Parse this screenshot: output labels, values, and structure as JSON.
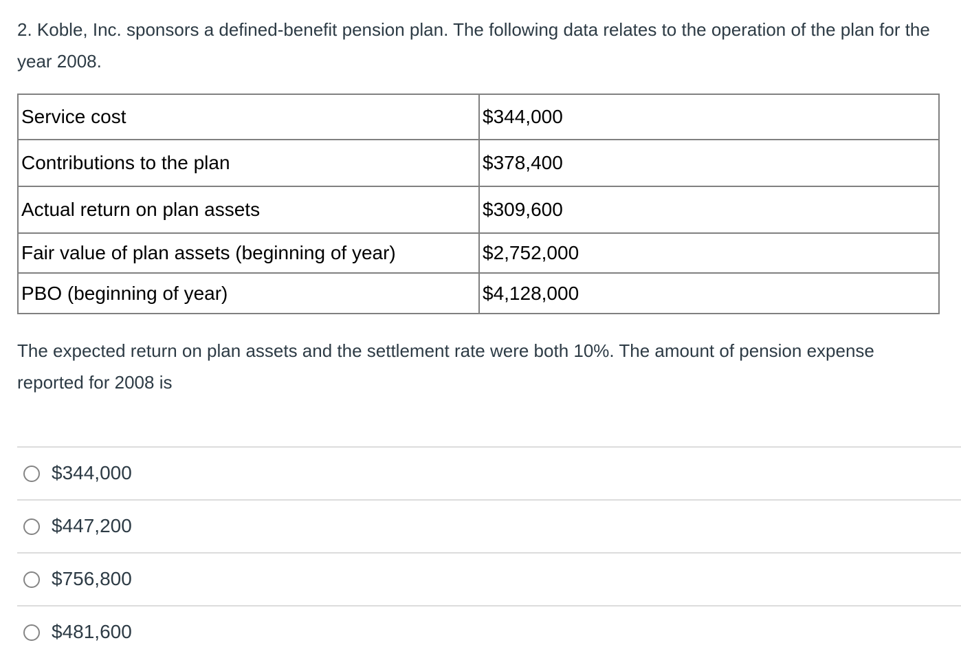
{
  "question": {
    "number": "2",
    "text_lines": [
      "2. Koble, Inc. sponsors a defined-benefit pension plan. The following data relates to the operation of the plan for the",
      "year 2008."
    ]
  },
  "table": {
    "rows": [
      {
        "label": "Service cost",
        "value": "$344,000"
      },
      {
        "label": "Contributions to the plan",
        "value": "$378,400"
      },
      {
        "label": "Actual return on plan assets",
        "value": "$309,600"
      },
      {
        "label": "Fair value of plan assets (beginning of year)",
        "value": "$2,752,000"
      },
      {
        "label": "PBO (beginning of year)",
        "value": "$4,128,000"
      }
    ]
  },
  "followup": {
    "text_lines": [
      "The expected return on plan assets and the settlement rate were both 10%. The amount of pension expense",
      "reported for 2008 is"
    ]
  },
  "options": [
    {
      "label": "$344,000",
      "selected": false
    },
    {
      "label": "$447,200",
      "selected": false
    },
    {
      "label": "$756,800",
      "selected": false
    },
    {
      "label": "$481,600",
      "selected": false
    }
  ],
  "colors": {
    "page_background": "#ffffff",
    "body_text": "#2d3b45",
    "table_text": "#000000",
    "table_border": "#808080",
    "option_divider": "#dcdcdc",
    "radio_border": "#848484"
  }
}
